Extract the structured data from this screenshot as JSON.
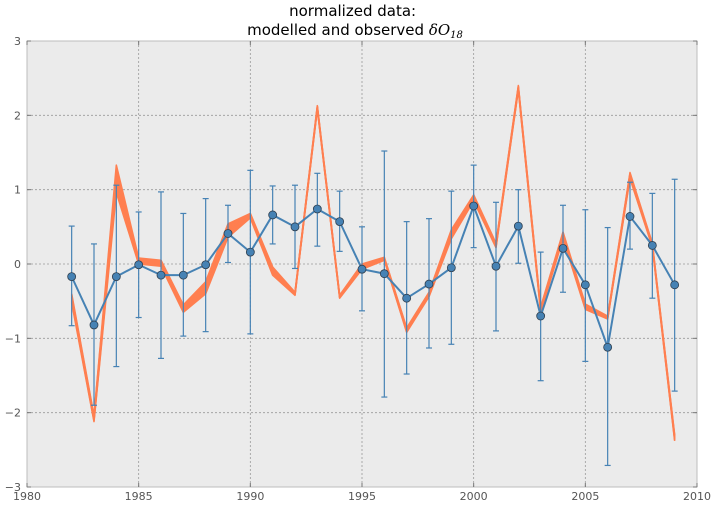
{
  "chart_data": {
    "type": "line",
    "title_line1": "normalized data:",
    "title_line2_text": "modelled and observed ",
    "title_line2_math": "δO",
    "title_line2_sub": "18",
    "xlim": [
      1980,
      2010
    ],
    "ylim": [
      -3,
      3
    ],
    "x_ticks": [
      1980,
      1985,
      1990,
      1995,
      2000,
      2005,
      2010
    ],
    "y_ticks": [
      -3,
      -2,
      -1,
      0,
      1,
      2,
      3
    ],
    "y_tick_labels": [
      "−3",
      "−2",
      "−1",
      "0",
      "1",
      "2",
      "3"
    ],
    "grid": true,
    "colors": {
      "observed": "#4682b4",
      "modelled": "#ff7f50",
      "background": "#ebebeb"
    },
    "observed": {
      "x": [
        1982,
        1983,
        1984,
        1985,
        1986,
        1987,
        1988,
        1989,
        1990,
        1991,
        1992,
        1993,
        1994,
        1995,
        1996,
        1997,
        1998,
        1999,
        2000,
        2001,
        2002,
        2003,
        2004,
        2005,
        2006,
        2007,
        2008,
        2009
      ],
      "y": [
        -0.17,
        -0.82,
        -0.17,
        -0.01,
        -0.15,
        -0.15,
        -0.01,
        0.41,
        0.16,
        0.66,
        0.5,
        0.74,
        0.57,
        -0.07,
        -0.13,
        -0.46,
        -0.27,
        -0.05,
        0.78,
        -0.03,
        0.51,
        -0.7,
        0.21,
        -0.28,
        -1.12,
        0.64,
        0.25,
        -0.28
      ],
      "err_low": [
        -0.83,
        -1.9,
        -1.38,
        -0.72,
        -1.27,
        -0.97,
        -0.91,
        0.02,
        -0.94,
        0.27,
        -0.06,
        0.24,
        0.17,
        -0.63,
        -1.79,
        -1.48,
        -1.13,
        -1.08,
        0.22,
        -0.9,
        0.01,
        -1.57,
        -0.38,
        -1.31,
        -2.71,
        0.2,
        -0.46,
        -1.71
      ],
      "err_high": [
        0.51,
        0.27,
        1.06,
        0.7,
        0.97,
        0.68,
        0.88,
        0.79,
        1.26,
        1.05,
        1.06,
        1.22,
        0.98,
        0.5,
        1.52,
        0.57,
        0.61,
        0.98,
        1.33,
        0.83,
        1.0,
        0.16,
        0.79,
        0.73,
        0.49,
        1.1,
        0.95,
        1.14
      ]
    },
    "modelled": {
      "x": [
        1982,
        1983,
        1984,
        1985,
        1986,
        1987,
        1988,
        1989,
        1990,
        1991,
        1992,
        1993,
        1994,
        1995,
        1996,
        1997,
        1998,
        1999,
        2000,
        2001,
        2002,
        2003,
        2004,
        2005,
        2006,
        2007,
        2008,
        2009
      ],
      "y_low": [
        -0.52,
        -2.12,
        0.96,
        0.0,
        -0.03,
        -0.65,
        -0.4,
        0.36,
        0.62,
        -0.15,
        -0.42,
        2.08,
        -0.46,
        -0.07,
        0.05,
        -0.92,
        -0.44,
        0.34,
        0.85,
        0.22,
        2.34,
        -0.65,
        0.34,
        -0.61,
        -0.74,
        1.15,
        0.23,
        -2.38
      ],
      "y_high": [
        -0.4,
        -2.04,
        1.33,
        0.08,
        0.05,
        -0.55,
        -0.24,
        0.54,
        0.68,
        -0.04,
        -0.38,
        2.13,
        -0.42,
        0.0,
        0.09,
        -0.86,
        -0.38,
        0.46,
        0.93,
        0.28,
        2.4,
        -0.58,
        0.43,
        -0.54,
        -0.7,
        1.23,
        0.28,
        -2.3
      ]
    }
  }
}
